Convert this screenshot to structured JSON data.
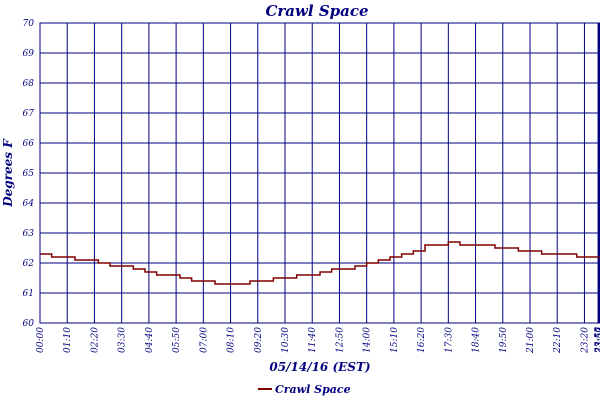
{
  "chart_data": {
    "type": "line",
    "title": "Crawl Space",
    "xlabel": "05/14/16 (EST)",
    "ylabel": "Degrees F",
    "ylim": [
      60,
      70
    ],
    "yticks": [
      "60",
      "61",
      "62",
      "63",
      "64",
      "65",
      "66",
      "67",
      "68",
      "69",
      "70"
    ],
    "xlim": [
      0,
      1440
    ],
    "xtick_values": [
      0,
      70,
      140,
      210,
      280,
      350,
      420,
      490,
      560,
      630,
      700,
      770,
      840,
      910,
      980,
      1050,
      1120,
      1190,
      1260,
      1330,
      1400,
      1435,
      1437,
      1439
    ],
    "xtick_labels": [
      "00:00",
      "01:10",
      "02:20",
      "03:30",
      "04:40",
      "05:50",
      "07:00",
      "08:10",
      "09:20",
      "10:30",
      "11:40",
      "12:50",
      "14:00",
      "15:10",
      "16:20",
      "17:30",
      "18:40",
      "19:50",
      "21:00",
      "22:10",
      "23:20",
      "23:55",
      "23:57",
      "23:59"
    ],
    "grid": true,
    "legend_position": "bottom-center",
    "series": [
      {
        "name": "Crawl Space",
        "color": "#800000",
        "x": [
          0,
          10,
          30,
          60,
          90,
          120,
          150,
          180,
          210,
          240,
          270,
          300,
          330,
          360,
          390,
          420,
          450,
          480,
          490,
          510,
          540,
          570,
          600,
          630,
          660,
          690,
          720,
          750,
          780,
          810,
          840,
          870,
          900,
          930,
          960,
          990,
          1020,
          1050,
          1080,
          1110,
          1140,
          1170,
          1200,
          1230,
          1260,
          1290,
          1320,
          1350,
          1380,
          1410,
          1439
        ],
        "values": [
          62.3,
          62.3,
          62.2,
          62.2,
          62.1,
          62.1,
          62.0,
          61.9,
          61.9,
          61.8,
          61.7,
          61.6,
          61.6,
          61.5,
          61.4,
          61.4,
          61.3,
          61.3,
          61.3,
          61.3,
          61.4,
          61.4,
          61.5,
          61.5,
          61.6,
          61.6,
          61.7,
          61.8,
          61.8,
          61.9,
          62.0,
          62.1,
          62.2,
          62.3,
          62.4,
          62.6,
          62.6,
          62.7,
          62.6,
          62.6,
          62.6,
          62.5,
          62.5,
          62.4,
          62.4,
          62.3,
          62.3,
          62.3,
          62.2,
          62.2,
          62.1
        ]
      }
    ]
  }
}
